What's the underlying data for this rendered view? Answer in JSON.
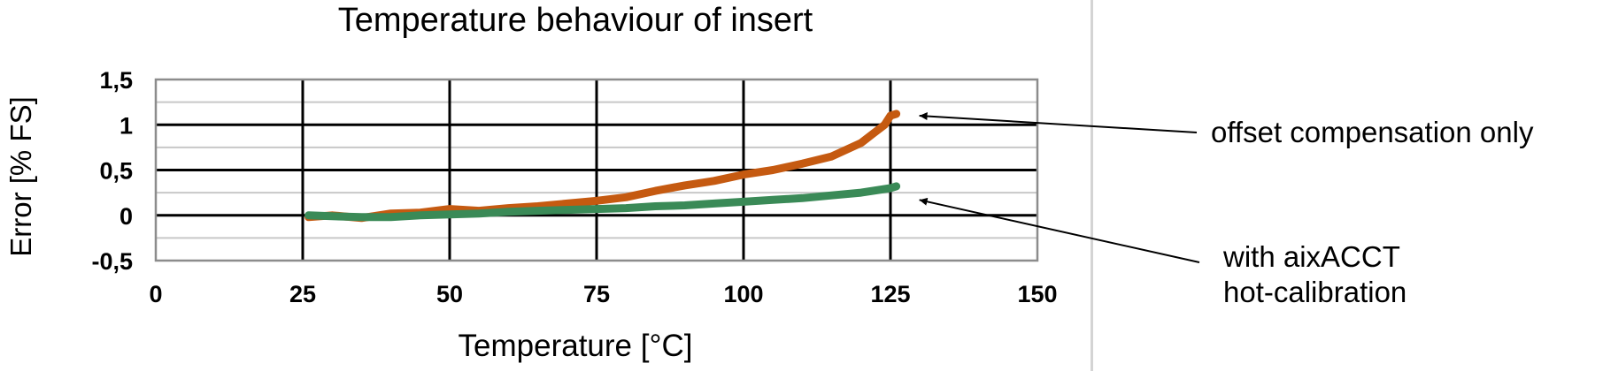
{
  "chart_data": {
    "type": "line",
    "title": "Temperature behaviour of insert",
    "xlabel": "Temperature [°C]",
    "ylabel": "Error [% FS]",
    "xlim": [
      0,
      150
    ],
    "ylim": [
      -0.5,
      1.5
    ],
    "x_ticks": [
      "0",
      "25",
      "50",
      "75",
      "100",
      "125",
      "150"
    ],
    "y_ticks": [
      "1,5",
      "1",
      "0,5",
      "0",
      "-0,5"
    ],
    "grid": true,
    "series": [
      {
        "color": "#c55a11",
        "x": [
          26,
          30,
          35,
          40,
          45,
          50,
          55,
          60,
          65,
          70,
          75,
          80,
          85,
          90,
          95,
          100,
          105,
          110,
          115,
          120,
          122,
          124,
          125,
          126
        ],
        "y": [
          -0.02,
          0.0,
          -0.03,
          0.02,
          0.03,
          0.07,
          0.05,
          0.08,
          0.1,
          0.13,
          0.16,
          0.2,
          0.27,
          0.33,
          0.38,
          0.45,
          0.5,
          0.57,
          0.65,
          0.8,
          0.9,
          1.0,
          1.1,
          1.12
        ]
      },
      {
        "color": "#3a8a57",
        "x": [
          26,
          30,
          35,
          40,
          45,
          50,
          55,
          60,
          65,
          70,
          75,
          80,
          85,
          90,
          95,
          100,
          105,
          110,
          115,
          120,
          125,
          126
        ],
        "y": [
          0.0,
          -0.01,
          -0.02,
          -0.02,
          0.0,
          0.01,
          0.02,
          0.04,
          0.05,
          0.06,
          0.07,
          0.08,
          0.1,
          0.11,
          0.13,
          0.15,
          0.17,
          0.19,
          0.22,
          0.25,
          0.3,
          0.32
        ]
      }
    ],
    "annotations": [
      {
        "text": "offset compensation only",
        "target": [
          126,
          1.1
        ]
      },
      {
        "text": "with aixACCT\nhot-calibration",
        "target": [
          126,
          0.17
        ]
      }
    ]
  }
}
